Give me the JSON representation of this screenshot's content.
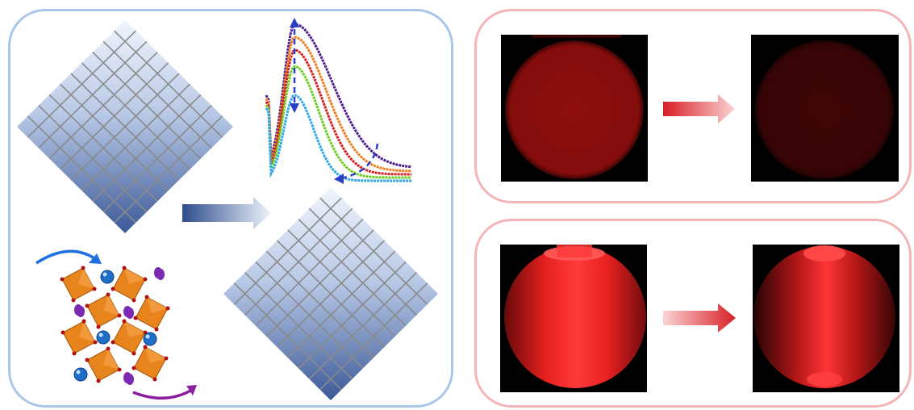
{
  "figure": {
    "colors": {
      "left_border": "#a9c6ea",
      "right_border": "#f4b4b8",
      "grid_dark": "#3b5998",
      "grid_light": "#f0f4fc",
      "octahedron": "#e8841c",
      "a_site_blue": "#1f6fc9",
      "halide_purple": "#7b2bb3",
      "disk_dim_red": "#8c0e0e",
      "disk_faint_red": "#3c0506",
      "disk_bright_red": "#ff2a2a"
    },
    "spectrum_series_colors": [
      "#4b1d8f",
      "#f07b1a",
      "#d61f1f",
      "#6acd1f",
      "#2ea8e8"
    ],
    "icons": {
      "lattice_before": "lattice-grid-icon",
      "lattice_after": "lattice-grid-icon",
      "process_arrow": "right-arrow-icon",
      "crystal": "perovskite-structure-icon",
      "spectra": "emission-spectra-icon",
      "ion_migration_in": "curved-arrow-icon",
      "ion_migration_out": "curved-arrow-icon"
    }
  }
}
